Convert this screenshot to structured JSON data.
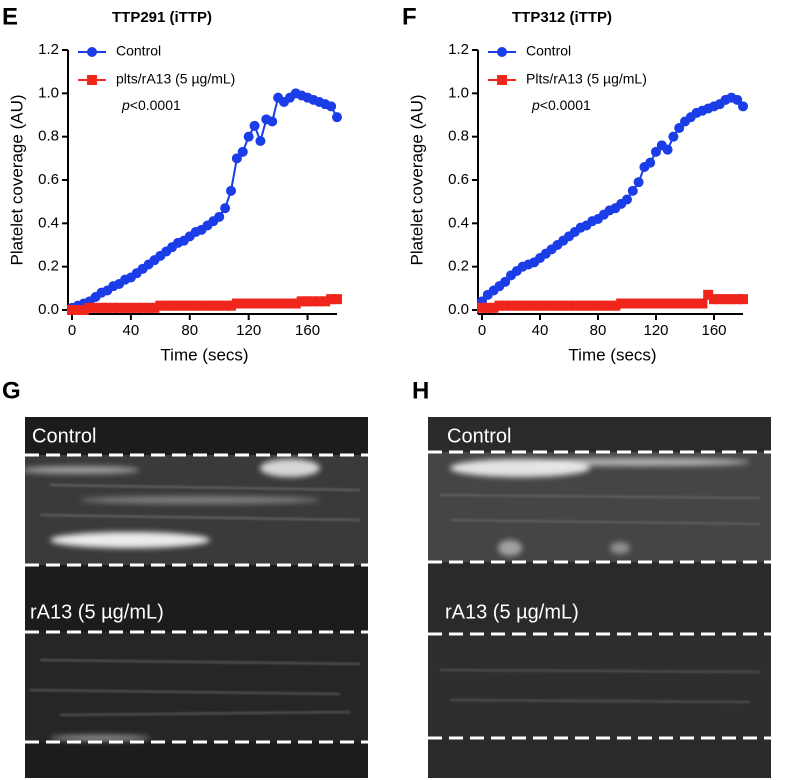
{
  "chart_data": [
    {
      "type": "line",
      "panel": "E",
      "title": "TTP291 (iTTP)",
      "xlabel": "Time (secs)",
      "ylabel": "Platelet coverage (AU)",
      "annotation_italic": "p",
      "annotation": "<0.0001",
      "x": [
        0,
        4,
        8,
        12,
        16,
        20,
        24,
        28,
        32,
        36,
        40,
        44,
        48,
        52,
        56,
        60,
        64,
        68,
        72,
        76,
        80,
        84,
        88,
        92,
        96,
        100,
        104,
        108,
        112,
        116,
        120,
        124,
        128,
        132,
        136,
        140,
        144,
        148,
        152,
        156,
        160,
        164,
        168,
        172,
        176,
        180
      ],
      "series": [
        {
          "name": "Control",
          "color": "#1a3de8",
          "marker": "circle",
          "values": [
            0.01,
            0.02,
            0.03,
            0.04,
            0.06,
            0.08,
            0.09,
            0.11,
            0.12,
            0.14,
            0.15,
            0.17,
            0.19,
            0.21,
            0.23,
            0.25,
            0.27,
            0.29,
            0.31,
            0.32,
            0.34,
            0.36,
            0.37,
            0.39,
            0.41,
            0.43,
            0.47,
            0.55,
            0.7,
            0.73,
            0.8,
            0.85,
            0.78,
            0.88,
            0.87,
            0.98,
            0.96,
            0.98,
            1.0,
            0.99,
            0.98,
            0.97,
            0.96,
            0.95,
            0.94,
            0.89
          ]
        },
        {
          "name": "plts/rA13 (5 µg/mL)",
          "color": "#f0261c",
          "marker": "square",
          "values": [
            0.0,
            0.0,
            0.0,
            0.01,
            0.01,
            0.01,
            0.01,
            0.01,
            0.01,
            0.01,
            0.01,
            0.01,
            0.01,
            0.01,
            0.01,
            0.02,
            0.02,
            0.02,
            0.02,
            0.02,
            0.02,
            0.02,
            0.02,
            0.02,
            0.02,
            0.02,
            0.02,
            0.02,
            0.03,
            0.03,
            0.03,
            0.03,
            0.03,
            0.03,
            0.03,
            0.03,
            0.03,
            0.03,
            0.03,
            0.04,
            0.04,
            0.04,
            0.04,
            0.04,
            0.05,
            0.05
          ]
        }
      ],
      "xlim": [
        0,
        180
      ],
      "xticks": [
        0,
        40,
        80,
        120,
        160
      ],
      "ylim": [
        0,
        1.2
      ],
      "yticks": [
        {
          "value": 0,
          "label": "0.0"
        },
        0.2,
        0.4,
        0.6,
        0.8,
        {
          "value": 1,
          "label": "1.0"
        },
        1.2
      ]
    },
    {
      "type": "line",
      "panel": "F",
      "title": "TTP312 (iTTP)",
      "xlabel": "Time (secs)",
      "ylabel": "Platelet coverage (AU)",
      "annotation_italic": "p",
      "annotation": "<0.0001",
      "x": [
        0,
        4,
        8,
        12,
        16,
        20,
        24,
        28,
        32,
        36,
        40,
        44,
        48,
        52,
        56,
        60,
        64,
        68,
        72,
        76,
        80,
        84,
        88,
        92,
        96,
        100,
        104,
        108,
        112,
        116,
        120,
        124,
        128,
        132,
        136,
        140,
        144,
        148,
        152,
        156,
        160,
        164,
        168,
        172,
        176,
        180
      ],
      "series": [
        {
          "name": "Control",
          "color": "#1a3de8",
          "marker": "circle",
          "values": [
            0.04,
            0.07,
            0.09,
            0.11,
            0.13,
            0.16,
            0.18,
            0.2,
            0.21,
            0.22,
            0.24,
            0.26,
            0.28,
            0.3,
            0.32,
            0.34,
            0.36,
            0.38,
            0.39,
            0.41,
            0.42,
            0.44,
            0.46,
            0.47,
            0.49,
            0.51,
            0.55,
            0.59,
            0.66,
            0.68,
            0.73,
            0.76,
            0.74,
            0.8,
            0.84,
            0.87,
            0.89,
            0.91,
            0.92,
            0.93,
            0.94,
            0.95,
            0.97,
            0.98,
            0.97,
            0.94
          ]
        },
        {
          "name": "Plts/rA13 (5 µg/mL)",
          "color": "#f0261c",
          "marker": "square",
          "values": [
            0.01,
            0.01,
            0.01,
            0.02,
            0.02,
            0.02,
            0.02,
            0.02,
            0.02,
            0.02,
            0.02,
            0.02,
            0.02,
            0.02,
            0.02,
            0.02,
            0.02,
            0.02,
            0.02,
            0.02,
            0.02,
            0.02,
            0.02,
            0.02,
            0.03,
            0.03,
            0.03,
            0.03,
            0.03,
            0.03,
            0.03,
            0.03,
            0.03,
            0.03,
            0.03,
            0.03,
            0.03,
            0.03,
            0.03,
            0.07,
            0.05,
            0.05,
            0.05,
            0.05,
            0.05,
            0.05
          ]
        }
      ],
      "xlim": [
        0,
        180
      ],
      "xticks": [
        0,
        40,
        80,
        120,
        160
      ],
      "ylim": [
        0,
        1.2
      ],
      "yticks": [
        {
          "value": 0,
          "label": "0.0"
        },
        0.2,
        0.4,
        0.6,
        0.8,
        {
          "value": 1,
          "label": "1.0"
        },
        1.2
      ]
    }
  ],
  "image_panels": [
    {
      "panel": "G",
      "labels": [
        "Control",
        "rA13 (5 µg/mL)"
      ]
    },
    {
      "panel": "H",
      "labels": [
        "Control",
        "rA13 (5 µg/mL)"
      ]
    }
  ]
}
